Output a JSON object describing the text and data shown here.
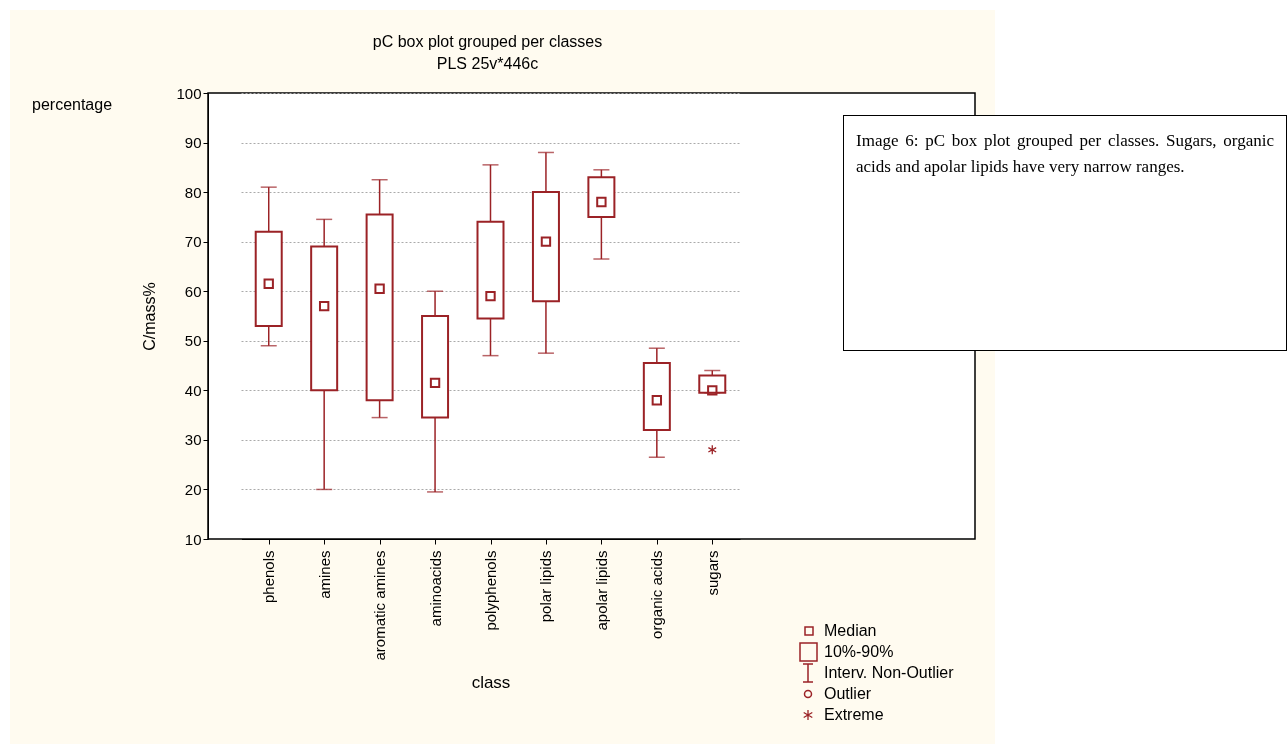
{
  "chart_data": {
    "type": "box",
    "title": "pC box plot grouped per classes",
    "subtitle": "PLS 25v*446c",
    "xlabel": "class",
    "ylabel": "C/mass%",
    "categories": [
      "phenols",
      "amines",
      "aromatic amines",
      "aminoacids",
      "polyphenols",
      "polar lipids",
      "apolar lipids",
      "organic acids",
      "sugars"
    ],
    "series": [
      {
        "color": "#9b2226",
        "boxes": [
          {
            "low": 49,
            "q1": 53,
            "median": 61.5,
            "q3": 72,
            "high": 81
          },
          {
            "low": 20,
            "q1": 40,
            "median": 57,
            "q3": 69,
            "high": 74.5
          },
          {
            "low": 34.5,
            "q1": 38,
            "median": 60.5,
            "q3": 75.5,
            "high": 82.5
          },
          {
            "low": 19.5,
            "q1": 34.5,
            "median": 41.5,
            "q3": 55,
            "high": 60
          },
          {
            "low": 47,
            "q1": 54.5,
            "median": 59,
            "q3": 74,
            "high": 85.5
          },
          {
            "low": 47.5,
            "q1": 58,
            "median": 70,
            "q3": 80,
            "high": 88
          },
          {
            "low": 66.5,
            "q1": 75,
            "median": 78,
            "q3": 83,
            "high": 84.5
          },
          {
            "low": 26.5,
            "q1": 32,
            "median": 38,
            "q3": 45.5,
            "high": 48.5
          },
          {
            "low": 39.5,
            "q1": 39.5,
            "median": 40,
            "q3": 43,
            "high": 44,
            "outliers": [
              28
            ]
          }
        ]
      }
    ],
    "ylim": [
      10,
      100
    ],
    "yticks": [
      10,
      20,
      30,
      40,
      50,
      60,
      70,
      80,
      90,
      100
    ],
    "grid": "y",
    "annotations": [
      "Image 6: pC box plot grouped per classes. Sugars, organic acids and apolar lipids have very narrow ranges.",
      "percentage",
      "Median",
      "10%-90%",
      "Interv. Non-Outlier",
      "Outlier",
      "Extreme"
    ]
  }
}
